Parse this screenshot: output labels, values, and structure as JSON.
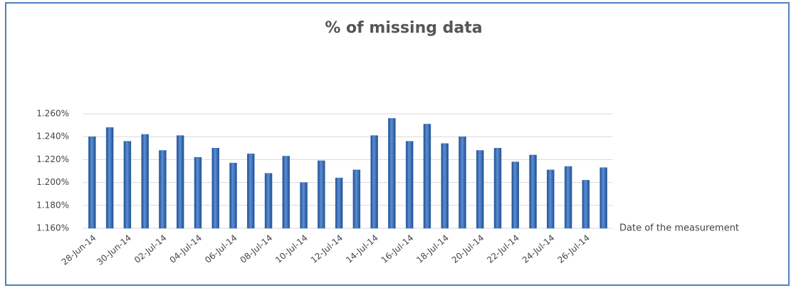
{
  "chart_data": {
    "type": "bar",
    "title": "% of missing data",
    "x_label": "Date of the measurement",
    "categories": [
      "28-Jun-14",
      null,
      "30-Jun-14",
      null,
      "02-Jul-14",
      null,
      "04-Jul-14",
      null,
      "06-Jul-14",
      null,
      "08-Jul-14",
      null,
      "10-Jul-14",
      null,
      "12-Jul-14",
      null,
      "14-Jul-14",
      null,
      "16-Jul-14",
      null,
      "18-Jul-14",
      null,
      "20-Jul-14",
      null,
      "22-Jul-14",
      null,
      "24-Jul-14",
      null,
      "26-Jul-14",
      null
    ],
    "values": [
      1.24,
      1.248,
      1.236,
      1.242,
      1.228,
      1.241,
      1.222,
      1.23,
      1.217,
      1.225,
      1.208,
      1.223,
      1.2,
      1.219,
      1.204,
      1.211,
      1.241,
      1.256,
      1.236,
      1.251,
      1.234,
      1.24,
      1.228,
      1.23,
      1.218,
      1.224,
      1.211,
      1.214,
      1.202,
      1.213
    ],
    "color": "#3a6fb8",
    "ylim": [
      1.16,
      1.26
    ],
    "yticks": [
      {
        "value": 1.16,
        "label": "1.160%"
      },
      {
        "value": 1.18,
        "label": "1.180%"
      },
      {
        "value": 1.2,
        "label": "1.200%"
      },
      {
        "value": 1.22,
        "label": "1.220%"
      },
      {
        "value": 1.24,
        "label": "1.240%"
      },
      {
        "value": 1.26,
        "label": "1.260%"
      }
    ],
    "grid": true
  }
}
